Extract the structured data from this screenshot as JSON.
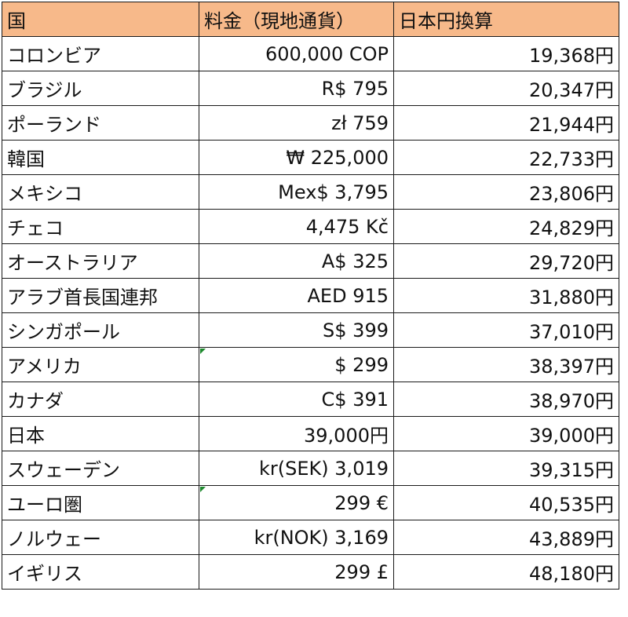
{
  "table": {
    "headers": [
      "国",
      "料金（現地通貨）",
      "日本円換算"
    ],
    "header_bg": "#f7b98a",
    "error_marker_color": "#1e8a2e",
    "rows": [
      {
        "country": "コロンビア",
        "local": "600,000 COP",
        "yen": "19,368円"
      },
      {
        "country": "ブラジル",
        "local": "R$ 795",
        "yen": "20,347円"
      },
      {
        "country": "ポーランド",
        "local": "zł 759",
        "yen": "21,944円"
      },
      {
        "country": "韓国",
        "local": "₩ 225,000",
        "yen": "22,733円"
      },
      {
        "country": "メキシコ",
        "local": "Mex$ 3,795",
        "yen": "23,806円"
      },
      {
        "country": "チェコ",
        "local": "4,475 Kč",
        "yen": "24,829円"
      },
      {
        "country": "オーストラリア",
        "local": "A$ 325",
        "yen": "29,720円"
      },
      {
        "country": "アラブ首長国連邦",
        "local": "AED 915",
        "yen": "31,880円"
      },
      {
        "country": "シンガポール",
        "local": "S$ 399",
        "yen": "37,010円"
      },
      {
        "country": "アメリカ",
        "local": "$ 299",
        "yen": "38,397円"
      },
      {
        "country": "カナダ",
        "local": "C$ 391",
        "yen": "38,970円"
      },
      {
        "country": "日本",
        "local": "39,000円",
        "yen": "39,000円"
      },
      {
        "country": "スウェーデン",
        "local": "kr(SEK) 3,019",
        "yen": "39,315円"
      },
      {
        "country": "ユーロ圏",
        "local": "299 €",
        "yen": "40,535円"
      },
      {
        "country": "ノルウェー",
        "local": "kr(NOK) 3,169",
        "yen": "43,889円"
      },
      {
        "country": "イギリス",
        "local": "299 £",
        "yen": "48,180円"
      }
    ]
  }
}
